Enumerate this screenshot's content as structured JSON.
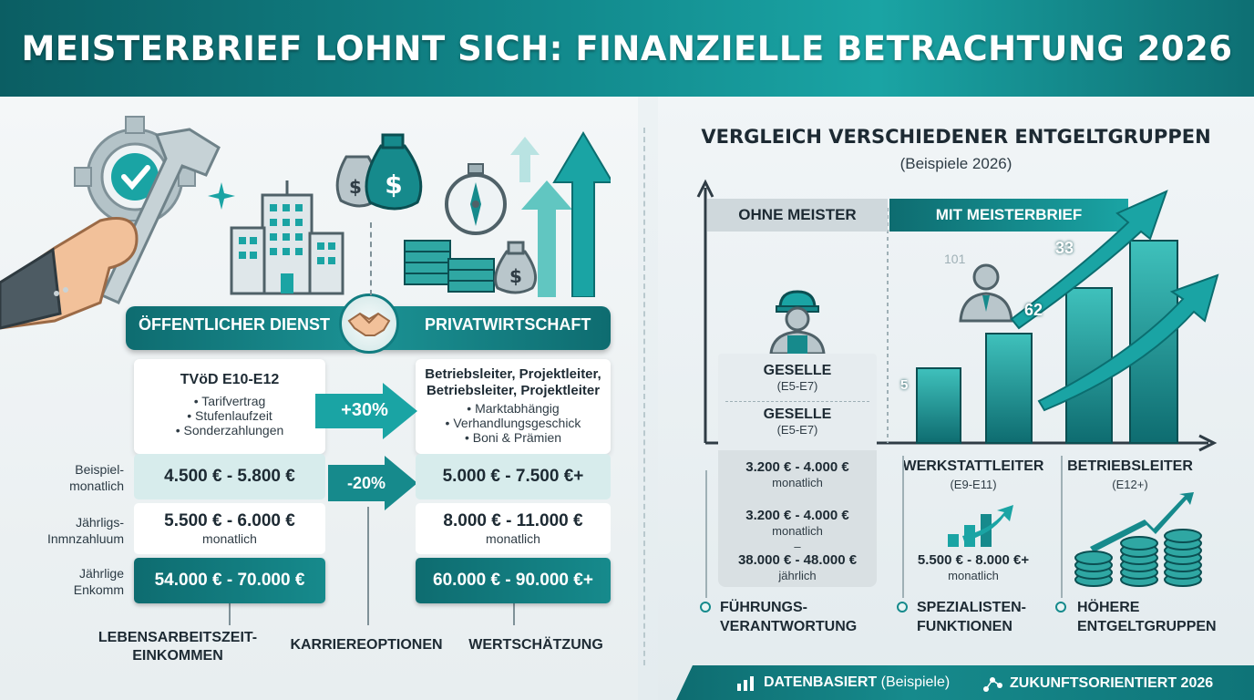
{
  "title": "MEISTERBRIEF LOHNT SICH: FINANZIELLE BETRACHTUNG 2026",
  "colors": {
    "primary": "#168a8c",
    "dark": "#0e6c70",
    "light": "#d7ecec",
    "text": "#1d2a33"
  },
  "left": {
    "sectors": {
      "public": "ÖFFENTLICHER DIENST",
      "private": "PRIVATWIRTSCHAFT"
    },
    "public_card": {
      "title": "TVöD E10-E12",
      "bullets": [
        "• Tarifvertrag",
        "• Stufenlaufzeit",
        "• Sonderzahlungen"
      ]
    },
    "private_card": {
      "title_line1": "Betriebsleiter, Projektleiter,",
      "title_line2": "Betriebsleiter, Projektleiter",
      "bullets": [
        "• Marktabhängig",
        "• Verhandlungsgeschick",
        "• Boni & Prämien"
      ]
    },
    "badges": {
      "plus": "+30%",
      "minus": "-20%"
    },
    "row_labels": {
      "row1_l1": "Beispiel-",
      "row1_l2": "monatlich",
      "row2_l1": "Jährligs-",
      "row2_l2": "Inmnzahluum",
      "row3_l1": "Jährlige",
      "row3_l2": "Enkomm"
    },
    "public_values": {
      "row1": "4.500 € - 5.800 €",
      "row2": "5.500 € - 6.000 €",
      "row2_sub": "monatlich",
      "row3": "54.000 € - 70.000 €"
    },
    "private_values": {
      "row1": "5.000 € - 7.500 €+",
      "row2": "8.000 € - 11.000 €",
      "row2_sub": "monatlich",
      "row3": "60.000 € - 90.000 €+"
    },
    "bottom": {
      "a_l1": "LEBENSARBEITSZEIT-",
      "a_l2": "EINKOMMEN",
      "b": "KARRIEREOPTIONEN",
      "c": "WERTSCHÄTZUNG"
    }
  },
  "right": {
    "title": "VERGLEICH VERSCHIEDENER ENTGELTGRUPPEN",
    "subtitle": "(Beispiele 2026)",
    "tags": {
      "without": "OHNE MEISTER",
      "with": "MIT MEISTERBRIEF"
    },
    "gesell": [
      {
        "title": "GESELLE",
        "sub": "(E5-E7)"
      },
      {
        "title": "GESELLE",
        "sub": "(E5-E7)"
      }
    ],
    "gesell_salaries": {
      "a_main": "3.200 € - 4.000 €",
      "a_sub": "monatlich",
      "b_main": "3.200 € - 4.000 €",
      "b_sub": "monatlich",
      "dash": "–",
      "c_main": "38.000 € - 48.000 €",
      "c_sub": "jährlich"
    },
    "werkstatt": {
      "title": "WERKSTATTLEITER",
      "sub": "(E9-E11)",
      "salary": "5.500 € - 8.000 €+",
      "salary_sub": "monatlich"
    },
    "betrieb": {
      "title": "BETRIEBSLEITER",
      "sub": "(E12+)"
    },
    "chart_numbers": {
      "n1": "33",
      "n2": "62",
      "n3": "5",
      "n4": "101"
    },
    "features": {
      "f1_l1": "FÜHRUNGS-",
      "f1_l2": "VERANTWORTUNG",
      "f2_l1": "SPEZIALISTEN-",
      "f2_l2": "FUNKTIONEN",
      "f3_l1": "HÖHERE",
      "f3_l2": "ENTGELTGRUPPEN"
    }
  },
  "footer": {
    "item1_bold": "DATENBASIERT",
    "item1_rest": "(Beispiele)",
    "item2_bold": "ZUKUNFTSORIENTIERT 2026"
  }
}
